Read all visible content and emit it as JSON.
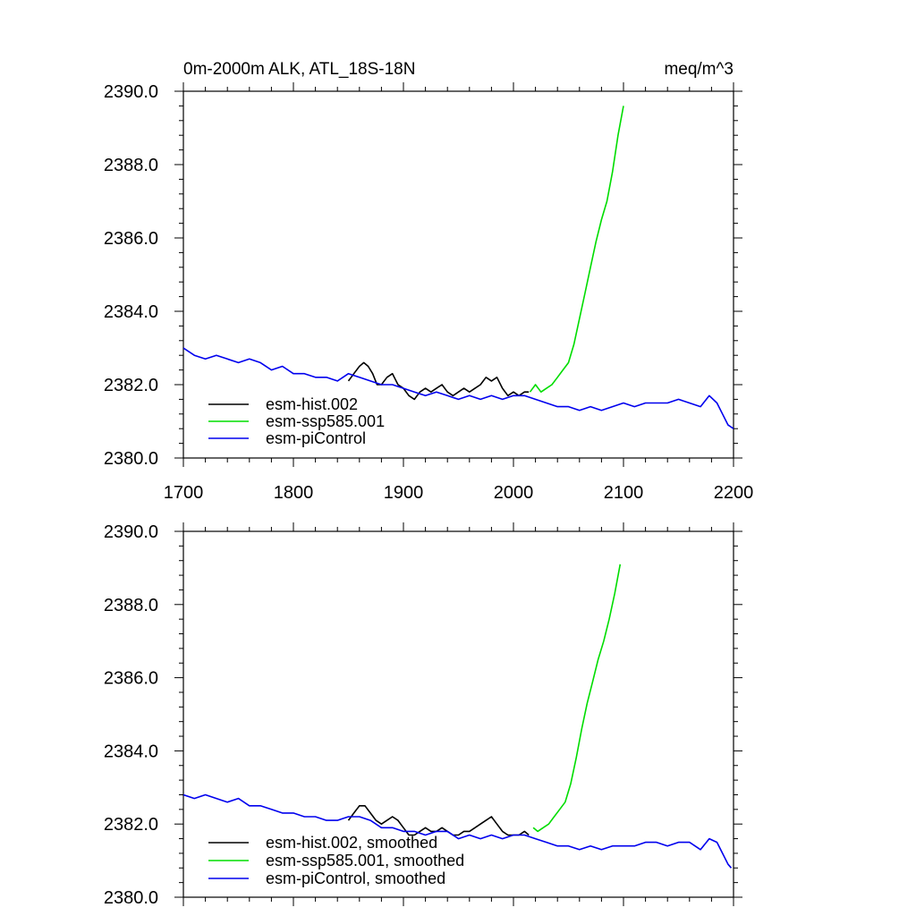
{
  "figure": {
    "title_left": "0m-2000m ALK, ATL_18S-18N",
    "title_right": "meq/m^3"
  },
  "chart_data": [
    {
      "type": "line",
      "title": "0m-2000m ALK, ATL_18S-18N",
      "units": "meq/m^3",
      "xlabel": "",
      "ylabel": "",
      "xlim": [
        1700,
        2200
      ],
      "ylim": [
        2380,
        2390
      ],
      "xticks": [
        1700,
        1800,
        1900,
        2000,
        2100,
        2200
      ],
      "xtick_labels": [
        "1700",
        "1800",
        "1900",
        "2000",
        "2100",
        "2200"
      ],
      "yticks": [
        2380,
        2382,
        2384,
        2386,
        2388,
        2390
      ],
      "ytick_labels": [
        "2380.0",
        "2382.0",
        "2384.0",
        "2386.0",
        "2388.0",
        "2390.0"
      ],
      "show_xtick_labels": true,
      "grid": false,
      "legend_position": "bottom-left",
      "series": [
        {
          "name": "esm-hist.002",
          "color": "#000000",
          "x": [
            1850,
            1855,
            1860,
            1864,
            1868,
            1872,
            1876,
            1880,
            1885,
            1890,
            1895,
            1900,
            1905,
            1910,
            1915,
            1920,
            1925,
            1930,
            1935,
            1940,
            1945,
            1950,
            1955,
            1960,
            1965,
            1970,
            1975,
            1980,
            1985,
            1990,
            1995,
            2000,
            2005,
            2010,
            2014
          ],
          "y": [
            2382.1,
            2382.3,
            2382.5,
            2382.6,
            2382.5,
            2382.3,
            2382.0,
            2382.0,
            2382.2,
            2382.3,
            2382.0,
            2381.9,
            2381.7,
            2381.6,
            2381.8,
            2381.9,
            2381.8,
            2381.9,
            2382.0,
            2381.8,
            2381.7,
            2381.8,
            2381.9,
            2381.8,
            2381.9,
            2382.0,
            2382.2,
            2382.1,
            2382.2,
            2381.9,
            2381.7,
            2381.8,
            2381.7,
            2381.8,
            2381.8
          ]
        },
        {
          "name": "esm-ssp585.001",
          "color": "#00dd00",
          "x": [
            2015,
            2020,
            2025,
            2030,
            2035,
            2040,
            2045,
            2050,
            2055,
            2060,
            2065,
            2070,
            2075,
            2080,
            2085,
            2090,
            2095,
            2100
          ],
          "y": [
            2381.8,
            2382.0,
            2381.8,
            2381.9,
            2382.0,
            2382.2,
            2382.4,
            2382.6,
            2383.1,
            2383.8,
            2384.5,
            2385.2,
            2385.9,
            2386.5,
            2387.0,
            2387.8,
            2388.8,
            2389.6
          ]
        },
        {
          "name": "esm-piControl",
          "color": "#0000ee",
          "x": [
            1700,
            1710,
            1720,
            1730,
            1740,
            1750,
            1760,
            1770,
            1780,
            1790,
            1800,
            1810,
            1820,
            1830,
            1840,
            1850,
            1860,
            1870,
            1880,
            1890,
            1900,
            1910,
            1920,
            1930,
            1940,
            1950,
            1960,
            1970,
            1980,
            1990,
            2000,
            2010,
            2020,
            2030,
            2040,
            2050,
            2060,
            2070,
            2080,
            2090,
            2100,
            2110,
            2120,
            2130,
            2140,
            2150,
            2160,
            2170,
            2178,
            2185,
            2190,
            2195,
            2200
          ],
          "y": [
            2383.0,
            2382.8,
            2382.7,
            2382.8,
            2382.7,
            2382.6,
            2382.7,
            2382.6,
            2382.4,
            2382.5,
            2382.3,
            2382.3,
            2382.2,
            2382.2,
            2382.1,
            2382.3,
            2382.2,
            2382.1,
            2382.0,
            2382.0,
            2381.9,
            2381.8,
            2381.7,
            2381.8,
            2381.7,
            2381.6,
            2381.7,
            2381.6,
            2381.7,
            2381.6,
            2381.7,
            2381.7,
            2381.6,
            2381.5,
            2381.4,
            2381.4,
            2381.3,
            2381.4,
            2381.3,
            2381.4,
            2381.5,
            2381.4,
            2381.5,
            2381.5,
            2381.5,
            2381.6,
            2381.5,
            2381.4,
            2381.7,
            2381.5,
            2381.2,
            2380.9,
            2380.8
          ]
        }
      ]
    },
    {
      "type": "line",
      "title": "",
      "xlabel": "",
      "ylabel": "",
      "xlim": [
        1700,
        2200
      ],
      "ylim": [
        2380,
        2390
      ],
      "xticks": [
        1700,
        1800,
        1900,
        2000,
        2100,
        2200
      ],
      "xtick_labels": [],
      "yticks": [
        2380,
        2382,
        2384,
        2386,
        2388,
        2390
      ],
      "ytick_labels": [
        "2380.0",
        "2382.0",
        "2384.0",
        "2386.0",
        "2388.0",
        "2390.0"
      ],
      "show_xtick_labels": false,
      "grid": false,
      "legend_position": "bottom-left",
      "series": [
        {
          "name": "esm-hist.002, smoothed",
          "color": "#000000",
          "x": [
            1850,
            1855,
            1860,
            1865,
            1870,
            1875,
            1880,
            1885,
            1890,
            1895,
            1900,
            1905,
            1910,
            1915,
            1920,
            1925,
            1930,
            1935,
            1940,
            1945,
            1950,
            1955,
            1960,
            1965,
            1970,
            1975,
            1980,
            1985,
            1990,
            1995,
            2000,
            2005,
            2010,
            2014
          ],
          "y": [
            2382.1,
            2382.3,
            2382.5,
            2382.5,
            2382.3,
            2382.1,
            2382.0,
            2382.1,
            2382.2,
            2382.1,
            2381.9,
            2381.7,
            2381.7,
            2381.8,
            2381.9,
            2381.8,
            2381.8,
            2381.9,
            2381.8,
            2381.7,
            2381.7,
            2381.8,
            2381.8,
            2381.9,
            2382.0,
            2382.1,
            2382.2,
            2382.0,
            2381.8,
            2381.7,
            2381.7,
            2381.7,
            2381.8,
            2381.7
          ]
        },
        {
          "name": "esm-ssp585.001, smoothed",
          "color": "#00dd00",
          "x": [
            2018,
            2022,
            2027,
            2032,
            2037,
            2042,
            2047,
            2052,
            2057,
            2062,
            2067,
            2072,
            2077,
            2082,
            2087,
            2092,
            2097
          ],
          "y": [
            2381.9,
            2381.8,
            2381.9,
            2382.0,
            2382.2,
            2382.4,
            2382.6,
            2383.1,
            2383.8,
            2384.6,
            2385.3,
            2385.9,
            2386.5,
            2387.0,
            2387.6,
            2388.3,
            2389.1
          ]
        },
        {
          "name": "esm-piControl, smoothed",
          "color": "#0000ee",
          "x": [
            1700,
            1710,
            1720,
            1730,
            1740,
            1750,
            1760,
            1770,
            1780,
            1790,
            1800,
            1810,
            1820,
            1830,
            1840,
            1850,
            1860,
            1870,
            1880,
            1890,
            1900,
            1910,
            1920,
            1930,
            1940,
            1950,
            1960,
            1970,
            1980,
            1990,
            2000,
            2010,
            2020,
            2030,
            2040,
            2050,
            2060,
            2070,
            2080,
            2090,
            2100,
            2110,
            2120,
            2130,
            2140,
            2150,
            2160,
            2170,
            2178,
            2185,
            2190,
            2195,
            2198
          ],
          "y": [
            2382.8,
            2382.7,
            2382.8,
            2382.7,
            2382.6,
            2382.7,
            2382.5,
            2382.5,
            2382.4,
            2382.3,
            2382.3,
            2382.2,
            2382.2,
            2382.1,
            2382.1,
            2382.2,
            2382.2,
            2382.1,
            2381.9,
            2381.9,
            2381.8,
            2381.8,
            2381.7,
            2381.8,
            2381.8,
            2381.6,
            2381.7,
            2381.6,
            2381.7,
            2381.6,
            2381.7,
            2381.7,
            2381.6,
            2381.5,
            2381.4,
            2381.4,
            2381.3,
            2381.4,
            2381.3,
            2381.4,
            2381.4,
            2381.4,
            2381.5,
            2381.5,
            2381.4,
            2381.5,
            2381.5,
            2381.3,
            2381.6,
            2381.5,
            2381.2,
            2380.9,
            2380.8
          ]
        }
      ]
    }
  ]
}
